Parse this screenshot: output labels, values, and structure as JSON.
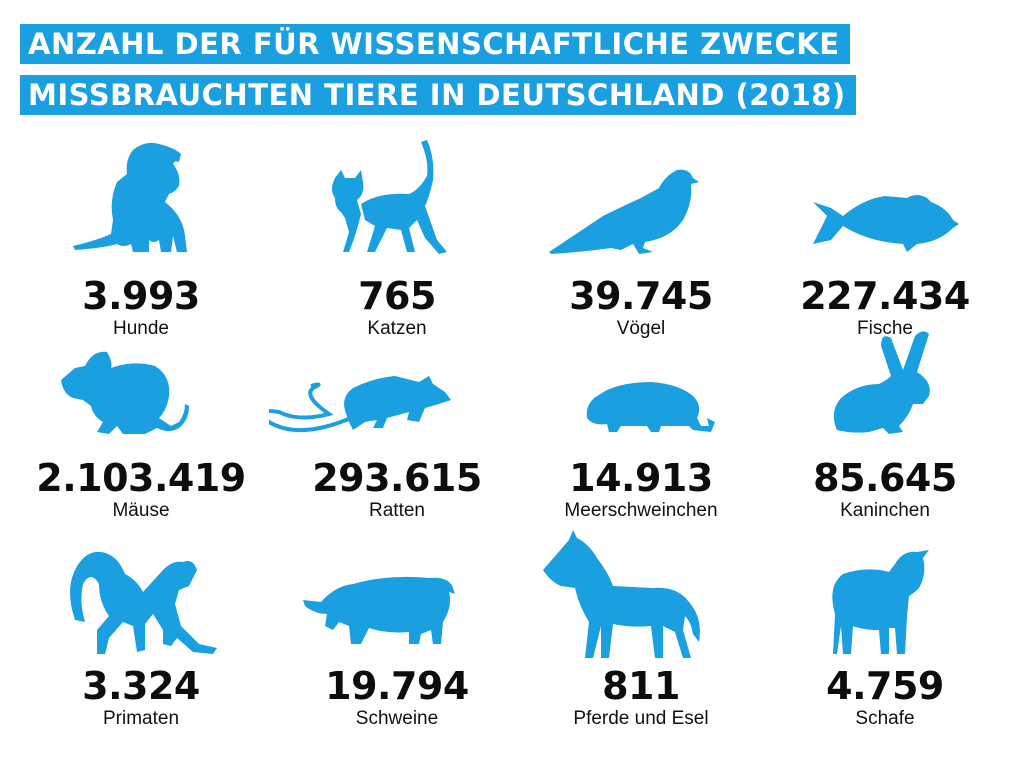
{
  "title": {
    "line1": "ANZAHL DER FÜR WISSENSCHAFTLICHE ZWECKE",
    "line2": "MISSBRAUCHTEN TIERE IN DEUTSCHLAND (2018)"
  },
  "colors": {
    "accent": "#1a9fe0",
    "text": "#0d0d0d"
  },
  "animals": [
    {
      "value": "3.993",
      "label": "Hunde",
      "icon": "dog-icon"
    },
    {
      "value": "765",
      "label": "Katzen",
      "icon": "cat-icon"
    },
    {
      "value": "39.745",
      "label": "Vögel",
      "icon": "bird-icon"
    },
    {
      "value": "227.434",
      "label": "Fische",
      "icon": "fish-icon"
    },
    {
      "value": "2.103.419",
      "label": "Mäuse",
      "icon": "mouse-icon"
    },
    {
      "value": "293.615",
      "label": "Ratten",
      "icon": "rat-icon"
    },
    {
      "value": "14.913",
      "label": "Meerschweinchen",
      "icon": "guinea-pig-icon"
    },
    {
      "value": "85.645",
      "label": "Kaninchen",
      "icon": "rabbit-icon"
    },
    {
      "value": "3.324",
      "label": "Primaten",
      "icon": "primate-icon"
    },
    {
      "value": "19.794",
      "label": "Schweine",
      "icon": "pig-icon"
    },
    {
      "value": "811",
      "label": "Pferde und Esel",
      "icon": "horse-icon"
    },
    {
      "value": "4.759",
      "label": "Schafe",
      "icon": "sheep-icon"
    }
  ]
}
